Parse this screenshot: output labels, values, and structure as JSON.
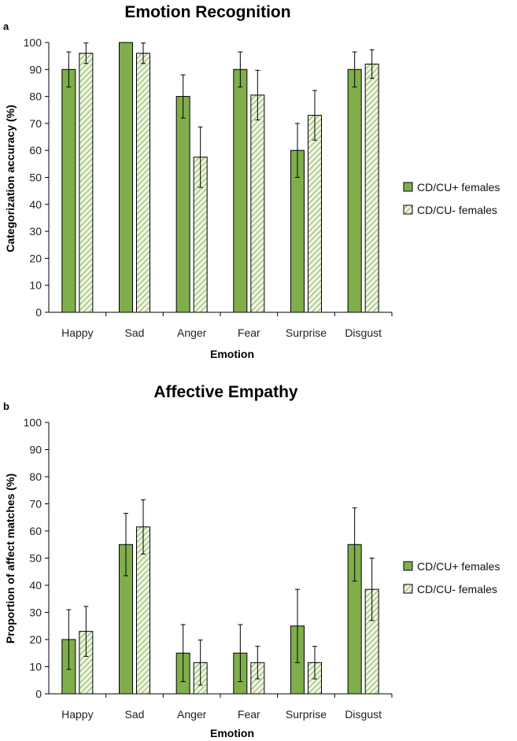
{
  "colors": {
    "solid_fill": "#7fae4b",
    "hatch_color": "#8cb55a",
    "hatch_bg": "#eef5e4",
    "bar_stroke": "#000000",
    "axis": "#000000"
  },
  "chart_data": [
    {
      "type": "bar",
      "panel": "a",
      "title": "Emotion Recognition",
      "xlabel": "Emotion",
      "ylabel": "Categorization accuracy (%)",
      "ylim": [
        0,
        100
      ],
      "yticks": [
        "0",
        "10",
        "20",
        "30",
        "40",
        "50",
        "60",
        "70",
        "80",
        "90",
        "100"
      ],
      "categories": [
        "Happy",
        "Sad",
        "Anger",
        "Fear",
        "Surprise",
        "Disgust"
      ],
      "legend_position": "right",
      "series": [
        {
          "name": "CD/CU+ females",
          "style": "solid",
          "values": [
            90,
            100,
            80,
            90,
            60,
            90
          ],
          "error": [
            6.5,
            0,
            8,
            6.5,
            10,
            6.5
          ]
        },
        {
          "name": "CD/CU- females",
          "style": "hatched",
          "values": [
            96,
            96,
            57.5,
            80.5,
            73,
            92
          ],
          "error": [
            3.8,
            3.8,
            11.2,
            9.2,
            9.2,
            5.3
          ]
        }
      ]
    },
    {
      "type": "bar",
      "panel": "b",
      "title": "Affective Empathy",
      "xlabel": "Emotion",
      "ylabel": "Proportion of affect matches (%)",
      "ylim": [
        0,
        100
      ],
      "yticks": [
        "0",
        "10",
        "20",
        "30",
        "40",
        "50",
        "60",
        "70",
        "80",
        "90",
        "100"
      ],
      "categories": [
        "Happy",
        "Sad",
        "Anger",
        "Fear",
        "Surprise",
        "Disgust"
      ],
      "legend_position": "right",
      "series": [
        {
          "name": "CD/CU+ females",
          "style": "solid",
          "values": [
            20,
            55,
            15,
            15,
            25,
            55
          ],
          "error": [
            11,
            11.5,
            10.5,
            10.5,
            13.5,
            13.5
          ]
        },
        {
          "name": "CD/CU- females",
          "style": "hatched",
          "values": [
            23,
            61.5,
            11.5,
            11.5,
            11.5,
            38.5
          ],
          "error": [
            9.2,
            10,
            8.3,
            6,
            6,
            11.5
          ]
        }
      ]
    }
  ]
}
